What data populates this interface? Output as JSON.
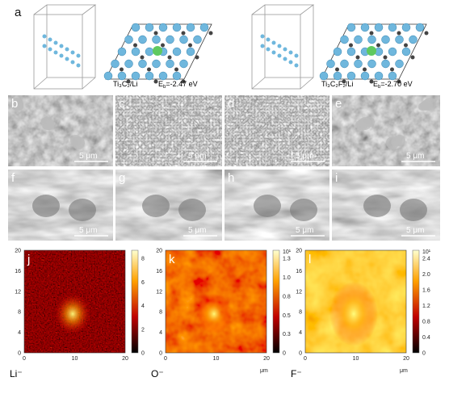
{
  "panel_a": {
    "label": "a",
    "left": {
      "formula": "Ti₃C₂/Li",
      "energy": {
        "symbol": "E",
        "subscript": "b",
        "text": "=-2.47 eV"
      }
    },
    "right": {
      "formula": "Ti₃C₂F₂/Li",
      "energy": {
        "symbol": "E",
        "subscript": "b",
        "text": "=-2.70 eV"
      }
    }
  },
  "sem_panels": [
    {
      "label": "b",
      "scale_bar": "5 μm"
    },
    {
      "label": "c",
      "scale_bar": "5 μm"
    },
    {
      "label": "d",
      "scale_bar": "5 μm"
    },
    {
      "label": "e",
      "scale_bar": "5 μm"
    },
    {
      "label": "f",
      "scale_bar": "5 μm"
    },
    {
      "label": "g",
      "scale_bar": "5 μm"
    },
    {
      "label": "h",
      "scale_bar": "5 μm"
    },
    {
      "label": "i",
      "scale_bar": "5 μm"
    }
  ],
  "maps": [
    {
      "label": "j",
      "species": "Li⁻",
      "x_ticks": [
        "0",
        "10",
        "20"
      ],
      "y_ticks": [
        "0",
        "4",
        "8",
        "12",
        "16",
        "20"
      ],
      "colorbar_ticks": [
        "0",
        "2",
        "4",
        "6",
        "8"
      ]
    },
    {
      "label": "k",
      "species": "O⁻",
      "x_unit": "μm",
      "colorbar_exponent": "10¹",
      "x_ticks": [
        "0",
        "10",
        "20"
      ],
      "y_ticks": [
        "0",
        "4",
        "8",
        "12",
        "16",
        "20"
      ],
      "colorbar_ticks": [
        "0",
        "0.3",
        "0.5",
        "0.8",
        "1.0",
        "1.3"
      ]
    },
    {
      "label": "l",
      "species": "F⁻",
      "x_unit": "μm",
      "colorbar_exponent": "10¹",
      "x_ticks": [
        "0",
        "10",
        "20"
      ],
      "y_ticks": [
        "0",
        "4",
        "8",
        "12",
        "16",
        "20"
      ],
      "colorbar_ticks": [
        "0",
        "0.4",
        "0.8",
        "1.2",
        "1.6",
        "2.0",
        "2.4"
      ]
    }
  ]
}
